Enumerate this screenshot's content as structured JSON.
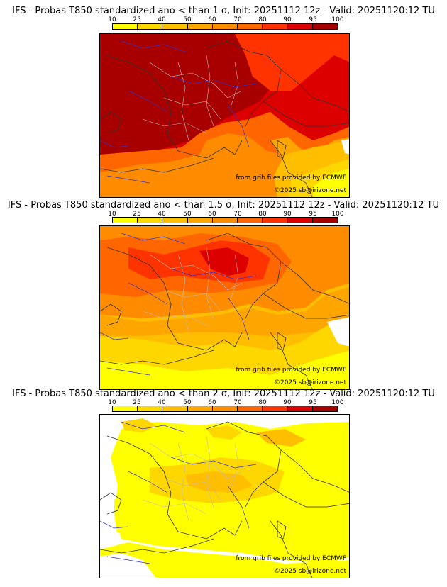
{
  "panels": [
    {
      "title": "IFS - Probas T850  standardized ano < than 1 σ, Init: 20251112 12z - Valid: 20251120:12 TU",
      "sigma": "1 σ"
    },
    {
      "title": "IFS - Probas T850  standardized ano < than 1.5 σ, Init: 20251112 12z - Valid: 20251120:12 TU",
      "sigma": "1.5 σ"
    },
    {
      "title": "IFS - Probas T850  standardized ano < than 2 σ, Init: 20251112 12z - Valid: 20251120:12 TU",
      "sigma": "2 σ"
    }
  ],
  "colorbar": {
    "ticks": [
      "10",
      "25",
      "40",
      "50",
      "60",
      "70",
      "80",
      "90",
      "95",
      "100"
    ],
    "colors": [
      "#ffff00",
      "#ffd700",
      "#ffbf00",
      "#ffa500",
      "#ff8c00",
      "#ff6600",
      "#ff3300",
      "#dd0000",
      "#a80000",
      "#6b0000"
    ]
  },
  "credit": "from grib files provided by ECMWF",
  "copyright": "©2025 sb@irizone.net",
  "colors": {
    "border_country": "#333333",
    "border_region": "#bbbbbb",
    "rivers": "#3333cc"
  }
}
